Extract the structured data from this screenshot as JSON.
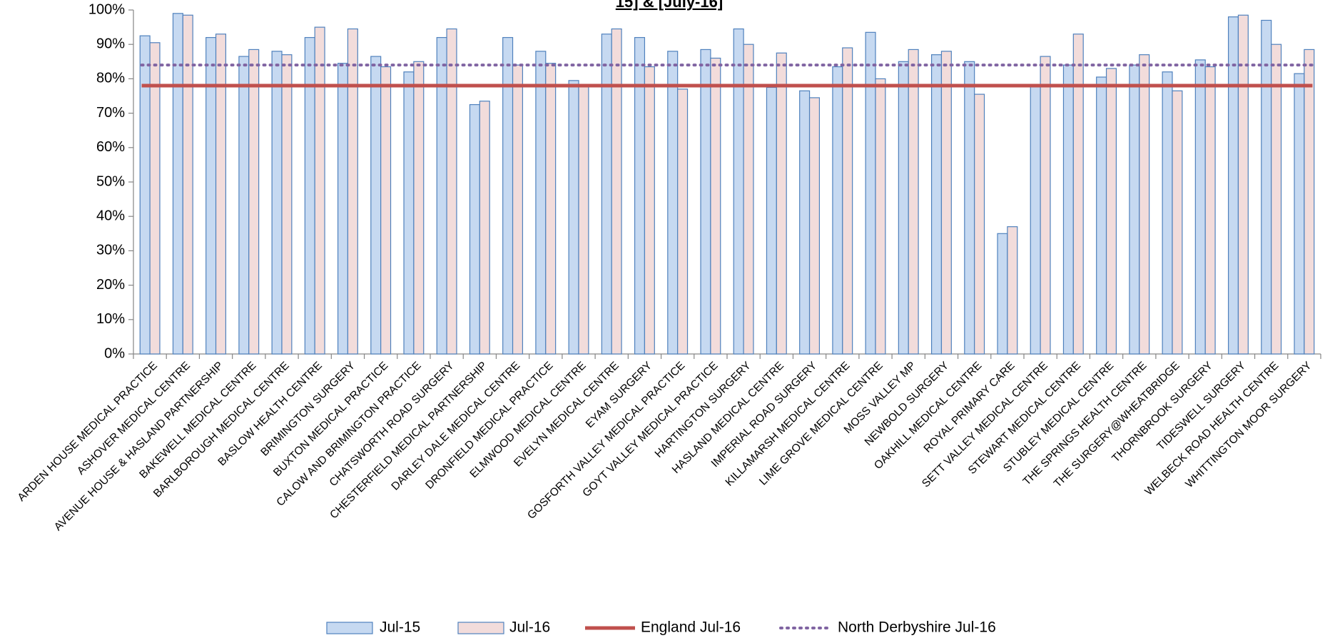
{
  "chart_data": {
    "type": "bar",
    "title": "15] & [July-16]",
    "categories": [
      "ARDEN HOUSE MEDICAL PRACTICE",
      "ASHOVER MEDICAL CENTRE",
      "AVENUE HOUSE & HASLAND PARTNERSHIP",
      "BAKEWELL MEDICAL CENTRE",
      "BARLBOROUGH MEDICAL CENTRE",
      "BASLOW HEALTH CENTRE",
      "BRIMINGTON SURGERY",
      "BUXTON MEDICAL PRACTICE",
      "CALOW AND BRIMINGTON PRACTICE",
      "CHATSWORTH ROAD SURGERY",
      "CHESTERFIELD MEDICAL PARTNERSHIP",
      "DARLEY DALE MEDICAL CENTRE",
      "DRONFIELD MEDICAL PRACTICE",
      "ELMWOOD MEDICAL CENTRE",
      "EVELYN MEDICAL CENTRE",
      "EYAM SURGERY",
      "GOSFORTH VALLEY MEDICAL PRACTICE",
      "GOYT VALLEY MEDICAL PRACTICE",
      "HARTINGTON SURGERY",
      "HASLAND MEDICAL CENTRE",
      "IMPERIAL ROAD SURGERY",
      "KILLAMARSH MEDICAL CENTRE",
      "LIME GROVE MEDICAL CENTRE",
      "MOSS VALLEY MP",
      "NEWBOLD SURGERY",
      "OAKHILL MEDICAL CENTRE",
      "ROYAL PRIMARY CARE",
      "SETT VALLEY MEDICAL CENTRE",
      "STEWART MEDICAL CENTRE",
      "STUBLEY MEDICAL CENTRE",
      "THE SPRINGS HEALTH CENTRE",
      "THE SURGERY@WHEATBRIDGE",
      "THORNBROOK SURGERY",
      "TIDESWELL SURGERY",
      "WELBECK ROAD HEALTH CENTRE",
      "WHITTINGTON MOOR SURGERY"
    ],
    "series": [
      {
        "name": "Jul-15",
        "color": "#c6d9f1",
        "stroke": "#4f81bd",
        "values": [
          92.5,
          99,
          92,
          86.5,
          88,
          92,
          84.5,
          86.5,
          82,
          92,
          72.5,
          92,
          88,
          79.5,
          93,
          92,
          88,
          88.5,
          94.5,
          77.5,
          76.5,
          83.5,
          93.5,
          85,
          87,
          85,
          35,
          78,
          84,
          80.5,
          84,
          82,
          85.5,
          98,
          97,
          81.5
        ]
      },
      {
        "name": "Jul-16",
        "color": "#f2dcdb",
        "stroke": "#4f81bd",
        "values": [
          90.5,
          98.5,
          93,
          88.5,
          87,
          95,
          94.5,
          83.5,
          85,
          94.5,
          73.5,
          84,
          84.5,
          78,
          94.5,
          83.5,
          77,
          86,
          90,
          87.5,
          74.5,
          89,
          80,
          88.5,
          88,
          75.5,
          37,
          86.5,
          93,
          83,
          87,
          76.5,
          83.5,
          98.5,
          90,
          88.5
        ]
      }
    ],
    "reference_lines": [
      {
        "name": "England Jul-16",
        "color": "#c0504d",
        "style": "solid",
        "value": 78
      },
      {
        "name": "North Derbyshire Jul-16",
        "color": "#8064a2",
        "style": "dotted",
        "value": 84
      }
    ],
    "ylim": [
      0,
      100
    ],
    "yticks": [
      {
        "value": 0,
        "label": "0%"
      },
      {
        "value": 10,
        "label": "10%"
      },
      {
        "value": 20,
        "label": "20%"
      },
      {
        "value": 30,
        "label": "30%"
      },
      {
        "value": 40,
        "label": "40%"
      },
      {
        "value": 50,
        "label": "50%"
      },
      {
        "value": 60,
        "label": "60%"
      },
      {
        "value": 70,
        "label": "70%"
      },
      {
        "value": 80,
        "label": "80%"
      },
      {
        "value": 90,
        "label": "90%"
      },
      {
        "value": 100,
        "label": "100%"
      }
    ],
    "grid": false,
    "legend": "bottom"
  }
}
